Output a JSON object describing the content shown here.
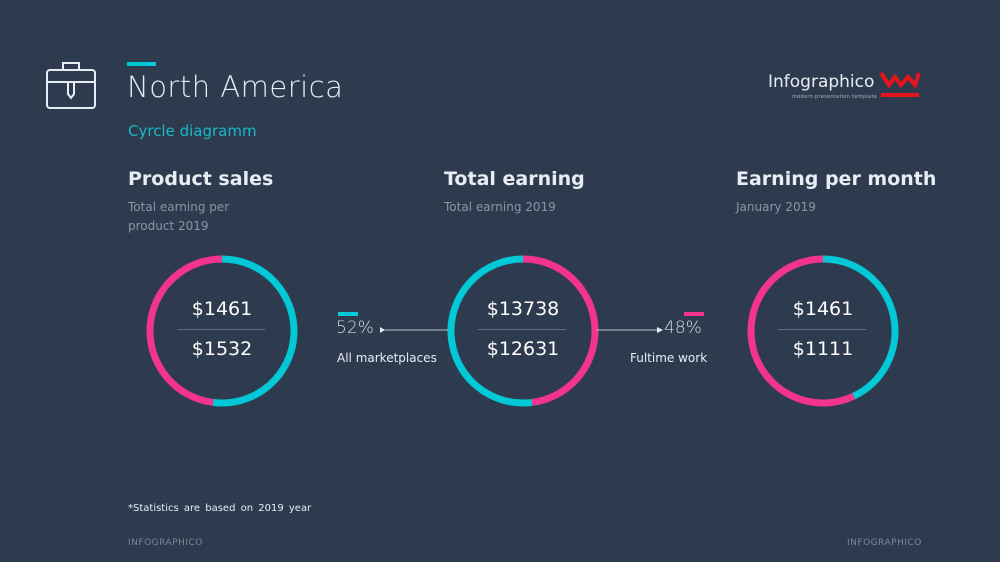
{
  "header": {
    "title": "North America",
    "subtitle": "Cyrcle diagramm",
    "icon": "briefcase-icon"
  },
  "logo": {
    "name": "Infographico",
    "tagline": "modern presentation template",
    "mark_color": "#e4161b"
  },
  "colors": {
    "cyan": "#00c8d6",
    "pink": "#f2348f",
    "background": "#2e3b4e"
  },
  "chart_data": {
    "type": "pie",
    "items": [
      {
        "title": "Product sales",
        "subtitle": "Total earning per product 2019",
        "top_value": "$1461",
        "bottom_value": "$1532",
        "ring": {
          "cyan_fraction": 0.52,
          "pink_fraction": 0.48,
          "cyan_side": "right"
        }
      },
      {
        "title": "Total earning",
        "subtitle": "Total earning 2019",
        "top_value": "$13738",
        "bottom_value": "$12631",
        "ring": {
          "cyan_fraction": 0.52,
          "pink_fraction": 0.48,
          "cyan_side": "left"
        }
      },
      {
        "title": "Earning per month",
        "subtitle": "January 2019",
        "top_value": "$1461",
        "bottom_value": "$1111",
        "ring": {
          "cyan_fraction": 0.43,
          "pink_fraction": 0.57,
          "cyan_side": "right"
        }
      }
    ],
    "connectors": [
      {
        "percent": "52%",
        "label": "All marketplaces",
        "color": "#00c8d6"
      },
      {
        "percent": "48%",
        "label": "Fultime work",
        "color": "#f2348f"
      }
    ]
  },
  "footnote": "*Statistics are based on 2019 year",
  "footer": {
    "left": "INFOGRAPHICO",
    "right": "INFOGRAPHICO"
  }
}
